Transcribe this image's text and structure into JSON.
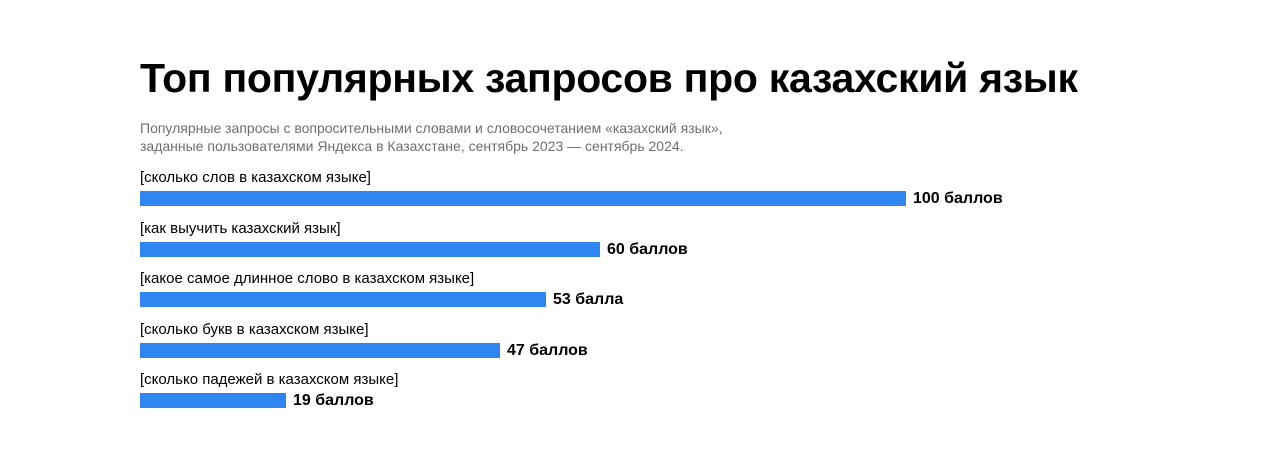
{
  "chart_data": {
    "type": "bar",
    "orientation": "horizontal",
    "title": "Топ популярных запросов про казахский язык",
    "subtitle_lines": [
      "Популярные запросы с вопросительными словами и словосочетанием «казахский язык»,",
      "заданные пользователями Яндекса в Казахстане, сентябрь 2023 — сентябрь 2024."
    ],
    "categories": [
      "[сколько слов в казахском языке]",
      "[как выучить казахский язык]",
      "[какое самое длинное слово в казахском языке]",
      "[сколько букв в казахском языке]",
      "[сколько падежей в казахском языке]"
    ],
    "values": [
      100,
      60,
      53,
      47,
      19
    ],
    "value_labels": [
      "100 баллов",
      "60 баллов",
      "53 балла",
      "47 баллов",
      "19 баллов"
    ],
    "xlim": [
      0,
      100
    ],
    "bar_color": "#2f86f0",
    "grid": false,
    "legend": "none"
  }
}
